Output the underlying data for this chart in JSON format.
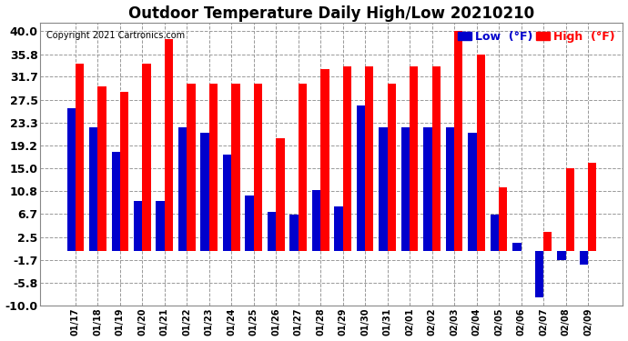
{
  "title": "Outdoor Temperature Daily High/Low 20210210",
  "copyright": "Copyright 2021 Cartronics.com",
  "dates": [
    "01/17",
    "01/18",
    "01/19",
    "01/20",
    "01/21",
    "01/22",
    "01/23",
    "01/24",
    "01/25",
    "01/26",
    "01/27",
    "01/28",
    "01/29",
    "01/30",
    "01/31",
    "02/01",
    "02/02",
    "02/03",
    "02/04",
    "02/05",
    "02/06",
    "02/07",
    "02/08",
    "02/09"
  ],
  "high": [
    34.0,
    30.0,
    29.0,
    34.0,
    38.5,
    30.5,
    30.5,
    30.5,
    30.5,
    20.5,
    30.5,
    33.0,
    33.5,
    33.5,
    30.5,
    33.5,
    33.5,
    40.0,
    35.8,
    11.5,
    0.0,
    3.5,
    15.0,
    16.0
  ],
  "low": [
    26.0,
    22.5,
    18.0,
    9.0,
    9.0,
    22.5,
    21.5,
    17.5,
    10.0,
    7.0,
    6.5,
    11.0,
    8.0,
    26.5,
    22.5,
    22.5,
    22.5,
    22.5,
    21.5,
    6.5,
    1.5,
    -8.5,
    -1.7,
    -2.5
  ],
  "high_color": "#ff0000",
  "low_color": "#0000cc",
  "bg_color": "#ffffff",
  "grid_color": "#999999",
  "ylim": [
    -10.0,
    40.0
  ],
  "yticks": [
    40.0,
    35.8,
    31.7,
    27.5,
    23.3,
    19.2,
    15.0,
    10.8,
    6.7,
    2.5,
    -1.7,
    -5.8,
    -10.0
  ],
  "ytick_labels": [
    "40.0",
    "35.8",
    "31.7",
    "27.5",
    "23.3",
    "19.2",
    "15.0",
    "10.8",
    "6.7",
    "2.5",
    "-1.7",
    "-5.8",
    "-10.0"
  ],
  "title_fontsize": 12,
  "copyright_fontsize": 7,
  "legend_fontsize": 9,
  "tick_fontsize": 9,
  "xtick_fontsize": 7
}
